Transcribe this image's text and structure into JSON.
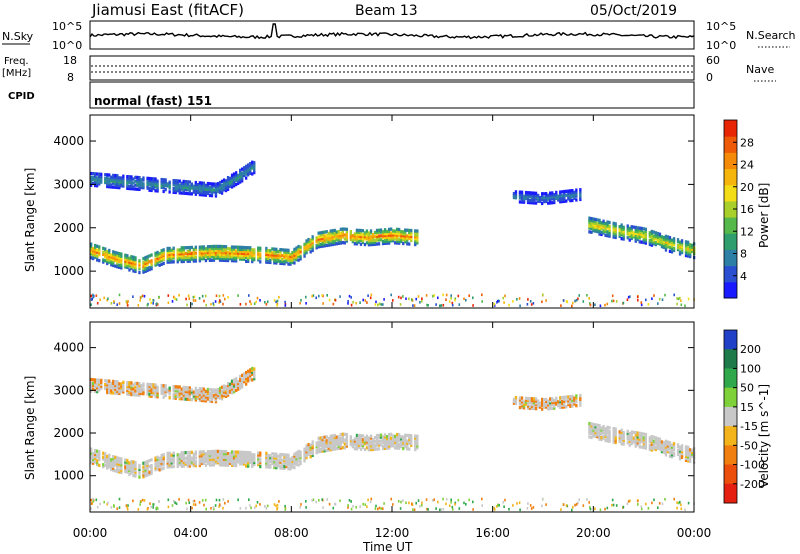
{
  "header": {
    "station": "Jiamusi East (fitACF)",
    "beam": "Beam 13",
    "date": "05/Oct/2019"
  },
  "status_panels": {
    "nsky": {
      "label": "N.Sky",
      "left_ticks": [
        "10^5",
        "10^0"
      ]
    },
    "nsearch": {
      "label": "N.Search",
      "right_ticks": [
        "10^5",
        "10^0"
      ]
    },
    "freq": {
      "label_line1": "Freq.",
      "label_line2": "[MHz]",
      "ticks": [
        "18",
        "8"
      ]
    },
    "nave": {
      "label": "Nave",
      "ticks": [
        "60",
        "0"
      ]
    },
    "cpid": {
      "label": "CPID",
      "value": "normal (fast) 151"
    }
  },
  "x_axis": {
    "label": "Time UT",
    "ticks": [
      "00:00",
      "04:00",
      "08:00",
      "12:00",
      "16:00",
      "20:00",
      "00:00"
    ]
  },
  "chart_data": [
    {
      "type": "heatmap",
      "panel": "power",
      "ylabel": "Slant Range [km]",
      "yticks": [
        "1000",
        "2000",
        "3000",
        "4000"
      ],
      "ylim": [
        150,
        4600
      ],
      "xlim_hours": [
        0,
        24
      ],
      "colorbar": {
        "label": "Power [dB]",
        "ticks": [
          "4",
          "8",
          "12",
          "16",
          "20",
          "24",
          "28"
        ],
        "range": [
          0,
          32
        ],
        "colors": [
          "#1a1aff",
          "#2a4fd0",
          "#2e7fa6",
          "#2f9e6e",
          "#55b84a",
          "#a9cf2a",
          "#f2dd16",
          "#f6b50c",
          "#f48a08",
          "#ef5a06",
          "#e82604"
        ]
      },
      "bands": [
        {
          "t0": 0.0,
          "t1": 13.0,
          "center_km": [
            [
              0,
              1450
            ],
            [
              1,
              1250
            ],
            [
              2,
              1100
            ],
            [
              3,
              1350
            ],
            [
              5,
              1400
            ],
            [
              7,
              1350
            ],
            [
              8,
              1300
            ],
            [
              9,
              1700
            ],
            [
              10,
              1800
            ],
            [
              11,
              1750
            ],
            [
              12,
              1800
            ],
            [
              13,
              1750
            ]
          ],
          "width_km": 350,
          "peak_db": 28
        },
        {
          "t0": 0.0,
          "t1": 6.5,
          "center_km": [
            [
              0,
              3100
            ],
            [
              3,
              2950
            ],
            [
              5,
              2850
            ],
            [
              6,
              3200
            ],
            [
              6.5,
              3400
            ]
          ],
          "width_km": 300,
          "peak_db": 10
        },
        {
          "t0": 16.8,
          "t1": 19.5,
          "center_km": [
            [
              16.8,
              2700
            ],
            [
              18,
              2650
            ],
            [
              19.5,
              2750
            ]
          ],
          "width_km": 250,
          "peak_db": 8
        },
        {
          "t0": 19.8,
          "t1": 24.0,
          "center_km": [
            [
              19.8,
              2050
            ],
            [
              21,
              1900
            ],
            [
              22,
              1800
            ],
            [
              23,
              1600
            ],
            [
              24,
              1450
            ]
          ],
          "width_km": 350,
          "peak_db": 22
        }
      ]
    },
    {
      "type": "heatmap",
      "panel": "velocity",
      "ylabel": "Slant Range [km]",
      "yticks": [
        "1000",
        "2000",
        "3000",
        "4000"
      ],
      "ylim": [
        150,
        4600
      ],
      "xlim_hours": [
        0,
        24
      ],
      "colorbar": {
        "label": "Velocity [m s^-1]",
        "ticks": [
          "200",
          "100",
          "50",
          "15",
          "-15",
          "-50",
          "-100",
          "-200"
        ],
        "colors": [
          "#2040c8",
          "#1f7a4a",
          "#2ea84a",
          "#7fd13a",
          "#c8c8c8",
          "#f3b31a",
          "#f07f10",
          "#ec4e0c",
          "#e62010"
        ]
      },
      "dominant_velocity_ms": "-15 to 15"
    }
  ]
}
